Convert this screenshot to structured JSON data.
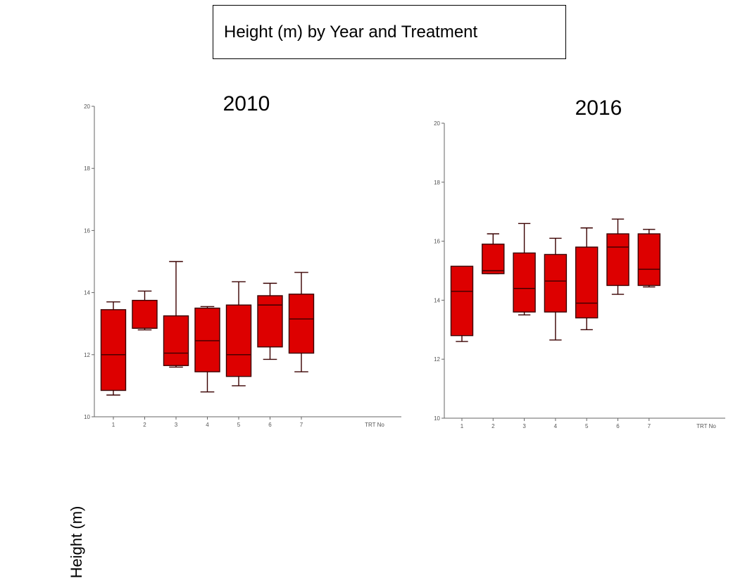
{
  "title": "Height (m) by Year and Treatment",
  "ylabel": "Height (m)",
  "colors": {
    "box_fill": "#dd0000",
    "box_stroke": "#3a0000",
    "axis": "#666666"
  },
  "chart_data": [
    {
      "type": "box",
      "title": "2010",
      "xlabel": "TRT No",
      "ylabel": "Height (m)",
      "categories": [
        "1",
        "2",
        "3",
        "4",
        "5",
        "6",
        "7"
      ],
      "ylim": [
        10,
        20
      ],
      "yticks": [
        10,
        12,
        14,
        16,
        18,
        20
      ],
      "grid": false,
      "boxes": [
        {
          "min": 10.7,
          "q1": 10.85,
          "median": 12.0,
          "q3": 13.45,
          "max": 13.7
        },
        {
          "min": 12.8,
          "q1": 12.85,
          "median": 12.85,
          "q3": 13.75,
          "max": 14.05
        },
        {
          "min": 11.6,
          "q1": 11.65,
          "median": 12.05,
          "q3": 13.25,
          "max": 15.0
        },
        {
          "min": 10.8,
          "q1": 11.45,
          "median": 12.45,
          "q3": 13.5,
          "max": 13.55
        },
        {
          "min": 11.0,
          "q1": 11.3,
          "median": 12.0,
          "q3": 13.6,
          "max": 14.35
        },
        {
          "min": 11.85,
          "q1": 12.25,
          "median": 13.6,
          "q3": 13.9,
          "max": 14.3
        },
        {
          "min": 11.45,
          "q1": 12.05,
          "median": 13.15,
          "q3": 13.95,
          "max": 14.65
        }
      ]
    },
    {
      "type": "box",
      "title": "2016",
      "xlabel": "TRT No",
      "ylabel": "Height (m)",
      "categories": [
        "1",
        "2",
        "3",
        "4",
        "5",
        "6",
        "7"
      ],
      "ylim": [
        10,
        20
      ],
      "yticks": [
        10,
        12,
        14,
        16,
        18,
        20
      ],
      "grid": false,
      "boxes": [
        {
          "min": 12.6,
          "q1": 12.8,
          "median": 14.3,
          "q3": 15.15,
          "max": 15.15
        },
        {
          "min": 14.9,
          "q1": 14.9,
          "median": 15.0,
          "q3": 15.9,
          "max": 16.25
        },
        {
          "min": 13.5,
          "q1": 13.6,
          "median": 14.4,
          "q3": 15.6,
          "max": 16.6
        },
        {
          "min": 12.65,
          "q1": 13.6,
          "median": 14.65,
          "q3": 15.55,
          "max": 16.1
        },
        {
          "min": 13.0,
          "q1": 13.4,
          "median": 13.9,
          "q3": 15.8,
          "max": 16.45
        },
        {
          "min": 14.2,
          "q1": 14.5,
          "median": 15.8,
          "q3": 16.25,
          "max": 16.75
        },
        {
          "min": 14.45,
          "q1": 14.5,
          "median": 15.05,
          "q3": 16.25,
          "max": 16.4
        }
      ]
    }
  ]
}
